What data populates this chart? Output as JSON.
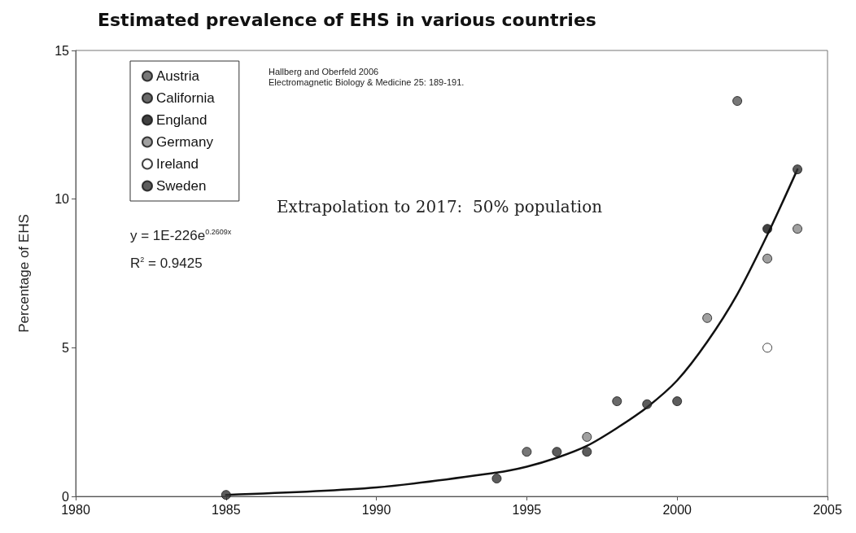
{
  "chart_data": {
    "type": "scatter",
    "title": "Estimated prevalence of EHS in various countries",
    "ylabel": "Percentage of EHS",
    "xlim": [
      1980,
      2005
    ],
    "xticks": [
      1980,
      1985,
      1990,
      1995,
      2000,
      2005
    ],
    "ylim": [
      0,
      15
    ],
    "yticks": [
      0,
      5,
      10,
      15
    ],
    "grid": false,
    "legend": "top left",
    "marker": "circle",
    "series": [
      {
        "name": "Austria",
        "color": "#555555",
        "x": [
          1995,
          2002
        ],
        "values": [
          1.5,
          13.3
        ]
      },
      {
        "name": "California",
        "color": "#444444",
        "x": [
          1998
        ],
        "values": [
          3.2
        ]
      },
      {
        "name": "England",
        "color": "#111111",
        "x": [
          2003
        ],
        "values": [
          9.0
        ]
      },
      {
        "name": "Germany",
        "color": "#888888",
        "x": [
          1997,
          2001,
          2003,
          2004
        ],
        "values": [
          2.0,
          6.0,
          8.0,
          9.0
        ]
      },
      {
        "name": "Ireland",
        "color": "#ffffff",
        "x": [
          2003
        ],
        "values": [
          5.0
        ]
      },
      {
        "name": "Sweden",
        "color": "#333333",
        "x": [
          1985,
          1994,
          1996,
          1997,
          1999,
          2000,
          2004
        ],
        "values": [
          0.05,
          0.6,
          1.5,
          1.5,
          3.1,
          3.2,
          11.0
        ]
      },
      {
        "type": "line",
        "color": "#111111",
        "marker": "none",
        "x": [
          1985,
          1990,
          1994,
          1995,
          1996,
          1997,
          1998,
          1999,
          2000,
          2001,
          2002,
          2003,
          2004
        ],
        "values": [
          0.05,
          0.3,
          0.8,
          1.0,
          1.3,
          1.7,
          2.3,
          3.0,
          3.9,
          5.2,
          6.8,
          8.8,
          11.0
        ]
      }
    ],
    "annotations": [
      "Hallberg and Oberfeld 2006",
      "Electromagnetic Biology & Medicine 25: 189-191.",
      "Extrapolation to 2017:  50% population",
      "y = 1E-226e$^{0.2609x}$",
      "R$^{2}$ = 0.9425"
    ]
  }
}
